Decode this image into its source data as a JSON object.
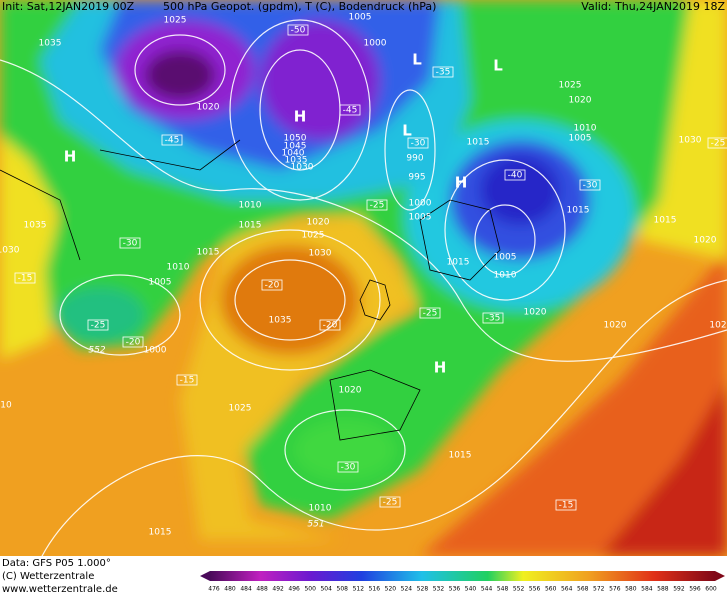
{
  "header": {
    "init": "Init: Sat,12JAN2019 00Z",
    "title": "500 hPa Geopot. (gpdm), T (C), Bodendruck (hPa)",
    "valid": "Valid: Thu,24JAN2019 18Z"
  },
  "footer": {
    "data": "Data: GFS P05 1.000°",
    "copyright": "(C) Wetterzentrale",
    "url": "www.wetterzentrale.de"
  },
  "colorbar": {
    "labels": [
      476,
      480,
      484,
      488,
      492,
      496,
      500,
      504,
      508,
      512,
      516,
      520,
      524,
      528,
      532,
      536,
      540,
      544,
      548,
      552,
      556,
      560,
      564,
      568,
      572,
      576,
      580,
      584,
      588,
      592,
      596,
      600
    ]
  },
  "map_labels": {
    "pressure": [
      1025,
      1035,
      1020,
      1005,
      1000,
      1050,
      1045,
      1040,
      1035,
      1030,
      990,
      995,
      1000,
      1005,
      1015,
      1025,
      1020,
      1010,
      1005,
      1030,
      1015,
      1015,
      1020,
      1010,
      1015,
      1020,
      1025,
      1030,
      1035,
      1035,
      1010,
      1015,
      1005,
      1000,
      1030,
      1015,
      1005,
      1010,
      1020,
      1020,
      1025,
      1020,
      1015,
      1010,
      1015,
      10,
      102
    ],
    "temperature": [
      -50,
      -35,
      -45,
      -45,
      -30,
      -25,
      -30,
      -15,
      -25,
      -20,
      -20,
      -20,
      -25,
      -35,
      -40,
      -30,
      -15,
      -30,
      -25,
      -15,
      -25
    ],
    "centers": [
      "H",
      "H",
      "L",
      "L",
      "L",
      "H",
      "H"
    ],
    "heights": [
      552,
      551
    ]
  }
}
